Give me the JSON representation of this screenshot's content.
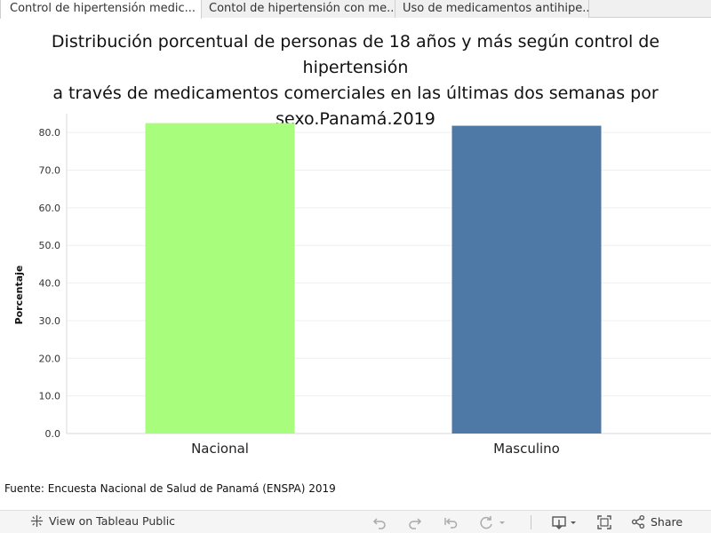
{
  "tabs": [
    {
      "label": "Control de hipertensión medic...",
      "active": true
    },
    {
      "label": "Contol de hipertensión con me...",
      "active": false
    },
    {
      "label": "Uso de medicamentos antihipe...",
      "active": false
    }
  ],
  "title_lines": [
    "Distribución porcentual de personas de 18 años y más según control de hipertensión",
    "a través de medicamentos comerciales en las últimas dos semanas por",
    "sexo.Panamá.2019"
  ],
  "chart_data": {
    "type": "bar",
    "categories": [
      "Nacional",
      "Masculino"
    ],
    "values": [
      82.5,
      81.8
    ],
    "colors": [
      "#a8fd7c",
      "#4e79a7"
    ],
    "ylabel": "Porcentaje",
    "ylim": [
      0,
      85
    ],
    "yticks": [
      "0.0",
      "10.0",
      "20.0",
      "30.0",
      "40.0",
      "50.0",
      "60.0",
      "70.0",
      "80.0"
    ],
    "grid": true
  },
  "source": "Fuente: Encuesta Nacional de Salud de Panamá (ENSPA) 2019",
  "toolbar": {
    "view_label": "View on Tableau Public",
    "share_label": "Share"
  }
}
